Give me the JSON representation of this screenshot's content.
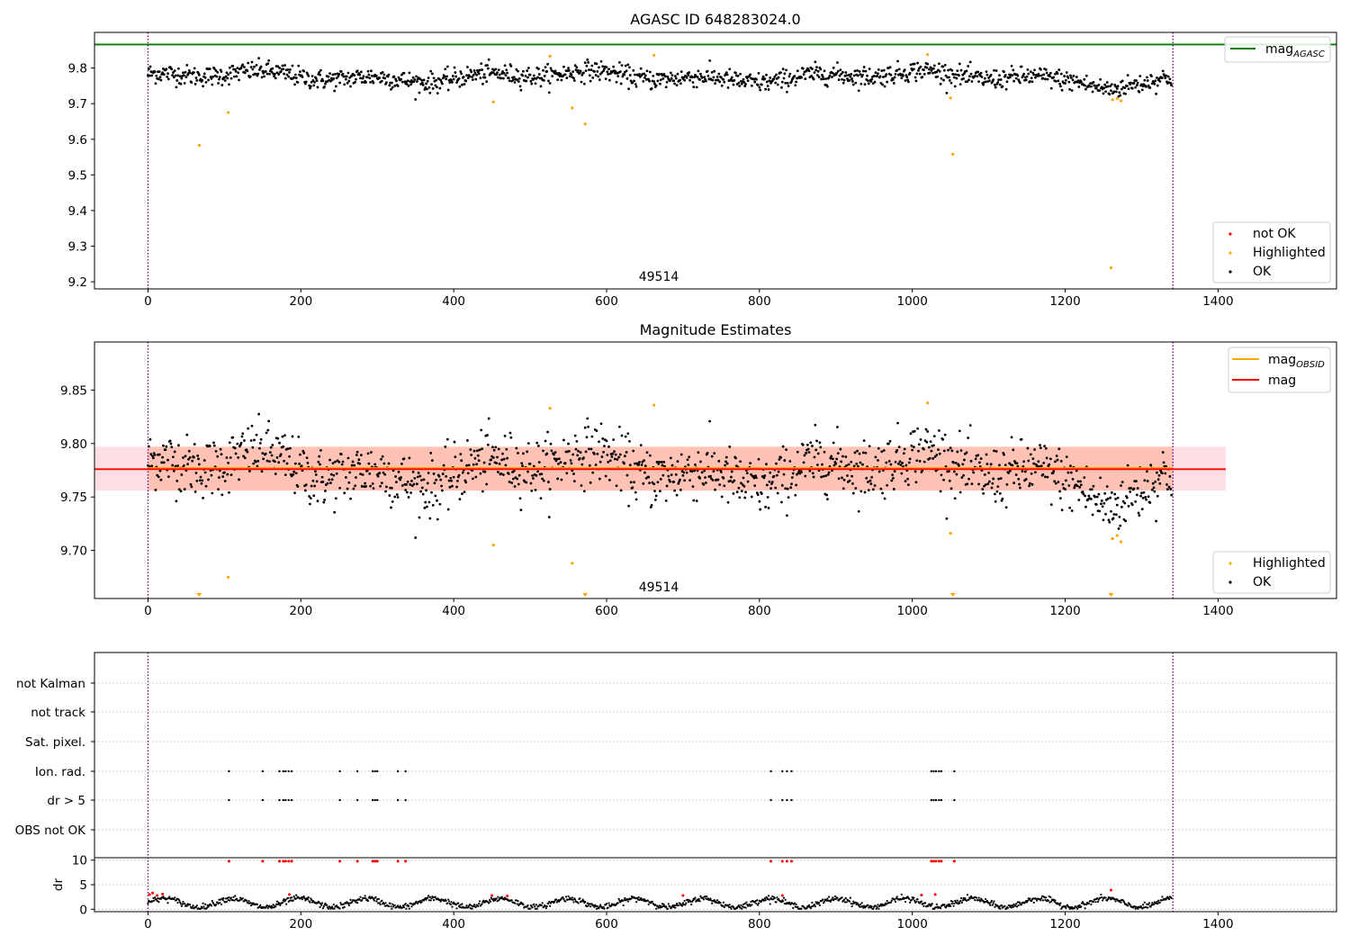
{
  "chart_data": [
    {
      "type": "scatter",
      "title": "AGASC ID 648283024.0",
      "xlim": [
        -70,
        1555
      ],
      "ylim": [
        9.18,
        9.9
      ],
      "xticks": [
        0,
        200,
        400,
        600,
        800,
        1000,
        1200,
        1400
      ],
      "yticks": [
        9.2,
        9.3,
        9.4,
        9.5,
        9.6,
        9.7,
        9.8
      ],
      "reference_line": {
        "name": "mag_AGASC",
        "value": 9.866,
        "color": "#008000"
      },
      "vlines": [
        0,
        1341
      ],
      "annotation": "49514",
      "legend_top": [
        {
          "label": "mag",
          "sub": "AGASC",
          "color": "#008000"
        }
      ],
      "legend_bottom": [
        {
          "label": "not OK",
          "color": "#ff0000"
        },
        {
          "label": "Highlighted",
          "color": "#ffa500"
        },
        {
          "label": "OK",
          "color": "#000000"
        }
      ],
      "series": [
        {
          "name": "OK",
          "color": "#000000",
          "n_points": 1340,
          "x_range": [
            0,
            1340
          ],
          "mean": 9.776,
          "sd": 0.014
        },
        {
          "name": "Highlighted",
          "color": "#ffa500",
          "points": [
            [
              67,
              9.583
            ],
            [
              105,
              9.675
            ],
            [
              452,
              9.705
            ],
            [
              526,
              9.833
            ],
            [
              555,
              9.688
            ],
            [
              572,
              9.643
            ],
            [
              662,
              9.836
            ],
            [
              1020,
              9.838
            ],
            [
              1050,
              9.716
            ],
            [
              1053,
              9.558
            ],
            [
              1260,
              9.239
            ],
            [
              1262,
              9.711
            ],
            [
              1268,
              9.714
            ],
            [
              1273,
              9.708
            ]
          ]
        }
      ]
    },
    {
      "type": "scatter",
      "title": "Magnitude Estimates",
      "xlim": [
        -70,
        1555
      ],
      "ylim": [
        9.655,
        9.895
      ],
      "xticks": [
        0,
        200,
        400,
        600,
        800,
        1000,
        1200,
        1400
      ],
      "yticks": [
        9.7,
        9.75,
        9.8,
        9.85
      ],
      "mag": 9.776,
      "mag_band": [
        9.756,
        9.797
      ],
      "mag_OBSID": 9.777,
      "mag_OBSID_band": [
        9.756,
        9.797
      ],
      "annotation": "49514",
      "legend_top": [
        {
          "label": "mag",
          "sub": "OBSID",
          "color": "#ffa500"
        },
        {
          "label": "mag",
          "sub": "",
          "color": "#ff0000"
        }
      ],
      "legend_bottom": [
        {
          "label": "Highlighted",
          "color": "#ffa500"
        },
        {
          "label": "OK",
          "color": "#000000"
        }
      ],
      "offscale_markers_x": [
        67,
        572,
        1053,
        1260
      ]
    },
    {
      "type": "scatter",
      "xlim": [
        -70,
        1555
      ],
      "flag_labels": [
        "not Kalman",
        "not track",
        "Sat. pixel.",
        "Ion. rad.",
        "dr > 5",
        "OBS not OK"
      ],
      "flag_times": [
        106,
        150,
        172,
        177,
        180,
        184,
        188,
        251,
        274,
        294,
        297,
        300,
        327,
        337,
        815,
        830,
        836,
        842,
        1025,
        1028,
        1031,
        1035,
        1038,
        1055
      ],
      "dr_axis": {
        "ylabel": "dr",
        "yticks": [
          0,
          5,
          10
        ],
        "ylim": [
          -0.5,
          10.5
        ]
      },
      "xticks": [
        0,
        200,
        400,
        600,
        800,
        1000,
        1200,
        1400
      ]
    }
  ]
}
